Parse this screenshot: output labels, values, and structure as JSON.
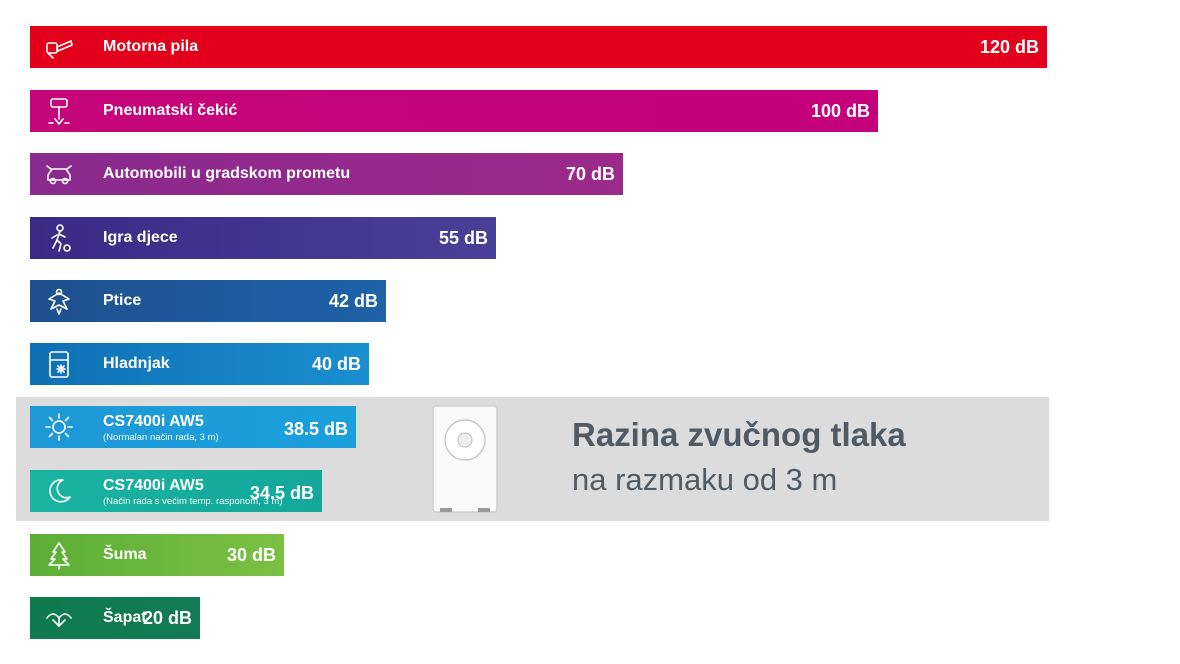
{
  "chart_data": {
    "type": "bar",
    "orientation": "horizontal",
    "unit": "dB",
    "xlim": [
      0,
      124
    ],
    "categories": [
      "Motorna pila",
      "Pneumatski čekić",
      "Automobili u gradskom prometu",
      "Igra djece",
      "Ptice",
      "Hladnjak",
      "CS7400i AW5",
      "CS7400i AW5",
      "Šuma",
      "Šapat"
    ],
    "sublabels": [
      "",
      "",
      "",
      "",
      "",
      "",
      "(Normalan način rada, 3 m)",
      "(Način rada s većim temp. rasponom, 3 m)",
      "",
      ""
    ],
    "values": [
      120,
      100,
      70,
      55,
      42,
      40,
      38.5,
      34.5,
      30,
      20
    ],
    "value_labels": [
      "120 dB",
      "100 dB",
      "70 dB",
      "55 dB",
      "42 dB",
      "40 dB",
      "38.5 dB",
      "34.5 dB",
      "30 dB",
      "20 dB"
    ],
    "icons": [
      "chainsaw-icon",
      "jackhammer-icon",
      "car-icon",
      "child-icon",
      "bird-icon",
      "fridge-icon",
      "sun-icon",
      "moon-icon",
      "tree-icon",
      "whisper-icon"
    ],
    "colors": [
      [
        "#e2001a",
        "#e2001a"
      ],
      [
        "#c5057a",
        "#c4007a"
      ],
      [
        "#8a2a8e",
        "#9b2a8a"
      ],
      [
        "#3a2a86",
        "#4a3f96"
      ],
      [
        "#1f4f8f",
        "#1e62a8"
      ],
      [
        "#0f6fb5",
        "#1a8fd0"
      ],
      [
        "#1e98d6",
        "#1aa0db"
      ],
      [
        "#1ab3a0",
        "#13a89a"
      ],
      [
        "#5cae37",
        "#7bc043"
      ],
      [
        "#0f7a4e",
        "#137a56"
      ]
    ],
    "highlight_rows": [
      6,
      7
    ],
    "grid": false,
    "legend": "none"
  },
  "annotation": {
    "title": "Razina zvučnog tlaka",
    "subtitle": "na razmaku od 3 m"
  },
  "product_image": "heat-pump-unit"
}
